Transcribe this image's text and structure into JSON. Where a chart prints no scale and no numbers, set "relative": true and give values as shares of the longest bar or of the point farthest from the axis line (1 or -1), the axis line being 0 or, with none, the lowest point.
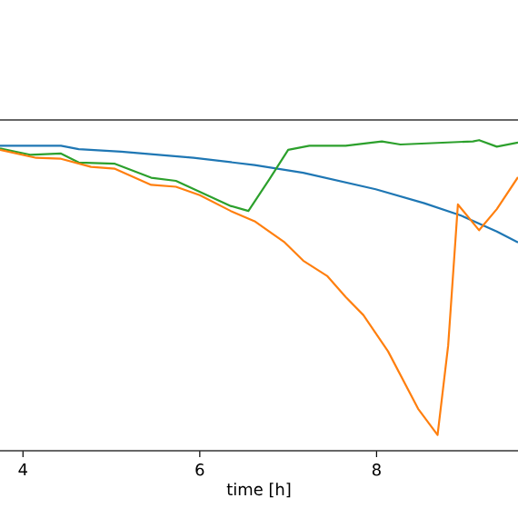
{
  "chart_data": {
    "type": "line",
    "xlabel": "time   [h]",
    "relative": true,
    "xlim": [
      3.74,
      9.6
    ],
    "xticks": [
      4,
      6,
      8
    ],
    "grid": false,
    "series": [
      {
        "color": "#1f77b4",
        "x": [
          3.74,
          4.43,
          4.63,
          5.11,
          5.93,
          6.62,
          7.17,
          7.99,
          8.54,
          8.95,
          9.36,
          9.6
        ],
        "values": [
          0.982,
          0.982,
          0.971,
          0.963,
          0.943,
          0.92,
          0.895,
          0.842,
          0.797,
          0.758,
          0.706,
          0.671
        ]
      },
      {
        "color": "#2ca02c",
        "x": [
          3.74,
          4.08,
          4.43,
          4.63,
          5.04,
          5.45,
          5.73,
          6.35,
          6.55,
          6.79,
          7.0,
          7.24,
          7.65,
          8.06,
          8.27,
          9.09,
          9.16,
          9.36,
          9.6
        ],
        "values": [
          0.973,
          0.953,
          0.957,
          0.928,
          0.924,
          0.879,
          0.869,
          0.788,
          0.772,
          0.875,
          0.969,
          0.982,
          0.982,
          0.996,
          0.986,
          0.996,
          1.0,
          0.979,
          0.992
        ]
      },
      {
        "color": "#ff7f0e",
        "x": [
          3.74,
          4.15,
          4.43,
          4.77,
          5.04,
          5.45,
          5.73,
          6.0,
          6.35,
          6.62,
          6.96,
          7.17,
          7.44,
          7.65,
          7.85,
          8.13,
          8.47,
          8.69,
          8.81,
          8.92,
          9.16,
          9.36,
          9.6
        ],
        "values": [
          0.969,
          0.943,
          0.94,
          0.914,
          0.908,
          0.856,
          0.85,
          0.823,
          0.772,
          0.739,
          0.671,
          0.612,
          0.563,
          0.495,
          0.437,
          0.32,
          0.135,
          0.051,
          0.339,
          0.793,
          0.71,
          0.778,
          0.881
        ]
      }
    ]
  }
}
